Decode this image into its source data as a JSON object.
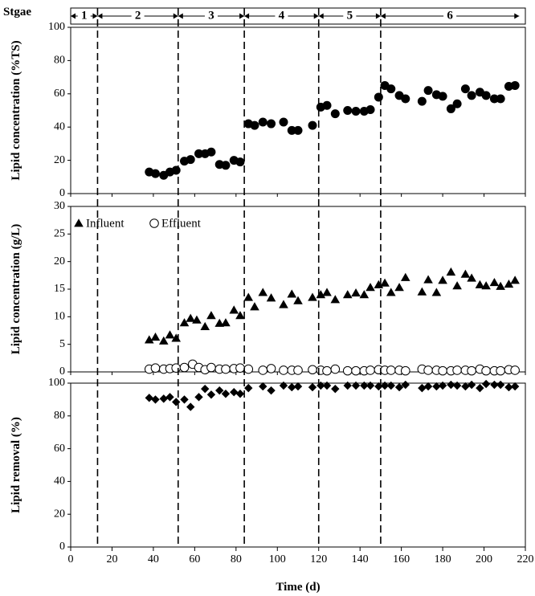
{
  "chart_data": {
    "type": "scatter",
    "stage_axis_label": "Stgae",
    "stages": [
      {
        "label": "1",
        "start": 0,
        "end": 13
      },
      {
        "label": "2",
        "start": 13,
        "end": 52
      },
      {
        "label": "3",
        "start": 52,
        "end": 84
      },
      {
        "label": "4",
        "start": 84,
        "end": 120
      },
      {
        "label": "5",
        "start": 120,
        "end": 150
      },
      {
        "label": "6",
        "start": 150,
        "end": 217
      }
    ],
    "stage_boundaries": [
      13,
      52,
      84,
      120,
      150
    ],
    "xlabel": "Time (d)",
    "xlim": [
      0,
      220
    ],
    "xticks": [
      0,
      20,
      40,
      60,
      80,
      100,
      120,
      140,
      160,
      180,
      200,
      220
    ],
    "panels": [
      {
        "ylabel": "Lipid concentration (%TS)",
        "ylim": [
          0,
          100
        ],
        "yticks": [
          0,
          20,
          40,
          60,
          80,
          100
        ],
        "series": [
          {
            "name": "",
            "marker": "circle-filled",
            "points": [
              [
                38,
                13
              ],
              [
                41,
                12
              ],
              [
                45,
                11
              ],
              [
                48,
                13
              ],
              [
                51,
                14
              ],
              [
                55,
                19.5
              ],
              [
                58,
                20.5
              ],
              [
                62,
                24
              ],
              [
                65,
                24
              ],
              [
                68,
                25
              ],
              [
                72,
                17.5
              ],
              [
                75,
                17
              ],
              [
                79,
                20
              ],
              [
                82,
                19
              ],
              [
                86,
                42
              ],
              [
                89,
                41
              ],
              [
                93,
                43
              ],
              [
                97,
                42
              ],
              [
                103,
                43
              ],
              [
                107,
                38
              ],
              [
                110,
                38
              ],
              [
                117,
                41
              ],
              [
                121,
                52
              ],
              [
                124,
                53
              ],
              [
                128,
                48
              ],
              [
                134,
                50
              ],
              [
                138,
                49.5
              ],
              [
                142,
                49.5
              ],
              [
                145,
                50.5
              ],
              [
                149,
                58
              ],
              [
                152,
                65
              ],
              [
                155,
                63
              ],
              [
                159,
                59
              ],
              [
                162,
                57
              ],
              [
                170,
                55.5
              ],
              [
                173,
                62
              ],
              [
                177,
                59.5
              ],
              [
                180,
                58.5
              ],
              [
                184,
                51
              ],
              [
                187,
                54
              ],
              [
                191,
                63
              ],
              [
                194,
                59
              ],
              [
                198,
                61
              ],
              [
                201,
                59
              ],
              [
                205,
                57
              ],
              [
                208,
                57
              ],
              [
                212,
                64.5
              ],
              [
                215,
                65
              ]
            ]
          }
        ]
      },
      {
        "ylabel": "Lipid concentration (g/L)",
        "ylim": [
          0,
          30
        ],
        "yticks": [
          0,
          5,
          10,
          15,
          20,
          25,
          30
        ],
        "legend": "top-left",
        "series": [
          {
            "name": "Influent",
            "marker": "triangle-filled",
            "points": [
              [
                38,
                5.8
              ],
              [
                41,
                6.3
              ],
              [
                45,
                5.6
              ],
              [
                48,
                6.7
              ],
              [
                51,
                6.1
              ],
              [
                55,
                8.9
              ],
              [
                58,
                9.7
              ],
              [
                61,
                9.4
              ],
              [
                65,
                8.2
              ],
              [
                68,
                10.2
              ],
              [
                72,
                8.8
              ],
              [
                75,
                8.9
              ],
              [
                79,
                11.2
              ],
              [
                82,
                10.2
              ],
              [
                86,
                13.5
              ],
              [
                89,
                11.8
              ],
              [
                93,
                14.4
              ],
              [
                97,
                13.4
              ],
              [
                103,
                12.2
              ],
              [
                107,
                14.1
              ],
              [
                110,
                12.9
              ],
              [
                117,
                13.5
              ],
              [
                121,
                14.0
              ],
              [
                124,
                14.4
              ],
              [
                128,
                13.1
              ],
              [
                134,
                14.0
              ],
              [
                138,
                14.3
              ],
              [
                142,
                14.0
              ],
              [
                145,
                15.3
              ],
              [
                149,
                15.8
              ],
              [
                152,
                16.1
              ],
              [
                155,
                14.4
              ],
              [
                159,
                15.3
              ],
              [
                162,
                17.1
              ],
              [
                170,
                14.5
              ],
              [
                173,
                16.7
              ],
              [
                177,
                14.4
              ],
              [
                180,
                16.6
              ],
              [
                184,
                18.1
              ],
              [
                187,
                15.6
              ],
              [
                191,
                17.7
              ],
              [
                194,
                17.0
              ],
              [
                198,
                15.8
              ],
              [
                201,
                15.6
              ],
              [
                205,
                16.2
              ],
              [
                208,
                15.5
              ],
              [
                212,
                15.9
              ],
              [
                215,
                16.6
              ]
            ]
          },
          {
            "name": "Effluent",
            "marker": "circle-open",
            "points": [
              [
                38,
                0.5
              ],
              [
                41,
                0.7
              ],
              [
                45,
                0.5
              ],
              [
                48,
                0.6
              ],
              [
                51,
                0.7
              ],
              [
                55,
                0.8
              ],
              [
                59,
                1.4
              ],
              [
                62,
                0.8
              ],
              [
                65,
                0.4
              ],
              [
                68,
                0.8
              ],
              [
                72,
                0.5
              ],
              [
                75,
                0.5
              ],
              [
                79,
                0.6
              ],
              [
                82,
                0.7
              ],
              [
                86,
                0.5
              ],
              [
                93,
                0.3
              ],
              [
                97,
                0.6
              ],
              [
                103,
                0.3
              ],
              [
                107,
                0.3
              ],
              [
                110,
                0.3
              ],
              [
                117,
                0.4
              ],
              [
                121,
                0.3
              ],
              [
                124,
                0.2
              ],
              [
                128,
                0.5
              ],
              [
                134,
                0.2
              ],
              [
                138,
                0.2
              ],
              [
                142,
                0.2
              ],
              [
                145,
                0.3
              ],
              [
                149,
                0.4
              ],
              [
                152,
                0.3
              ],
              [
                155,
                0.3
              ],
              [
                159,
                0.3
              ],
              [
                162,
                0.2
              ],
              [
                170,
                0.5
              ],
              [
                173,
                0.3
              ],
              [
                177,
                0.3
              ],
              [
                180,
                0.2
              ],
              [
                184,
                0.2
              ],
              [
                187,
                0.3
              ],
              [
                191,
                0.3
              ],
              [
                194,
                0.2
              ],
              [
                198,
                0.5
              ],
              [
                201,
                0.2
              ],
              [
                205,
                0.2
              ],
              [
                208,
                0.2
              ],
              [
                212,
                0.4
              ],
              [
                215,
                0.3
              ]
            ]
          }
        ]
      },
      {
        "ylabel": "Lipid removal (%)",
        "ylim": [
          0,
          100
        ],
        "yticks": [
          0,
          20,
          40,
          60,
          80,
          100
        ],
        "series": [
          {
            "name": "",
            "marker": "diamond-filled",
            "points": [
              [
                38,
                91
              ],
              [
                41,
                90
              ],
              [
                45,
                90.5
              ],
              [
                48,
                91.5
              ],
              [
                51,
                88.5
              ],
              [
                55,
                90
              ],
              [
                58,
                85.5
              ],
              [
                62,
                91.5
              ],
              [
                65,
                96.5
              ],
              [
                68,
                93
              ],
              [
                72,
                95.5
              ],
              [
                75,
                93.5
              ],
              [
                79,
                94.5
              ],
              [
                82,
                93.5
              ],
              [
                86,
                97
              ],
              [
                93,
                98
              ],
              [
                97,
                95.5
              ],
              [
                103,
                98.5
              ],
              [
                107,
                97.5
              ],
              [
                110,
                98
              ],
              [
                117,
                97.5
              ],
              [
                121,
                98.5
              ],
              [
                124,
                98.5
              ],
              [
                128,
                96.5
              ],
              [
                134,
                98.5
              ],
              [
                138,
                98.5
              ],
              [
                142,
                98.5
              ],
              [
                145,
                98.5
              ],
              [
                149,
                98
              ],
              [
                152,
                98.5
              ],
              [
                155,
                98.5
              ],
              [
                159,
                97.5
              ],
              [
                162,
                99
              ],
              [
                170,
                97
              ],
              [
                173,
                98
              ],
              [
                177,
                98
              ],
              [
                180,
                98.5
              ],
              [
                184,
                99
              ],
              [
                187,
                98.5
              ],
              [
                191,
                98
              ],
              [
                194,
                99
              ],
              [
                198,
                97
              ],
              [
                201,
                99.5
              ],
              [
                205,
                99
              ],
              [
                208,
                99
              ],
              [
                212,
                97.5
              ],
              [
                215,
                98
              ]
            ]
          }
        ]
      }
    ]
  }
}
